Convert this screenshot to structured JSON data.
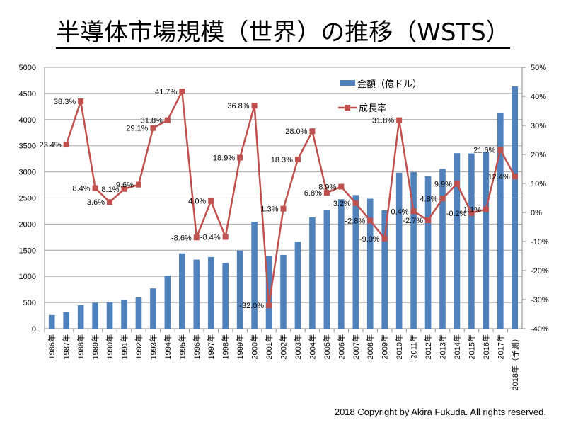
{
  "title": "半導体市場規模（世界）の推移（WSTS）",
  "copyright": "2018 Copyright by Akira Fukuda. All rights reserved.",
  "chart_data": {
    "type": "bar+line",
    "title": "半導体市場規模（世界）の推移（WSTS）",
    "categories": [
      "1986年",
      "1987年",
      "1988年",
      "1989年",
      "1990年",
      "1991年",
      "1992年",
      "1993年",
      "1994年",
      "1995年",
      "1996年",
      "1997年",
      "1998年",
      "1999年",
      "2000年",
      "2001年",
      "2002年",
      "2003年",
      "2004年",
      "2005年",
      "2006年",
      "2007年",
      "2008年",
      "2009年",
      "2010年",
      "2011年",
      "2012年",
      "2013年",
      "2014年",
      "2015年",
      "2016年",
      "2017年",
      "2018年（予測）"
    ],
    "series": [
      {
        "name": "金額（億ドル）",
        "type": "bar",
        "axis": "left",
        "color": "#4f81bd",
        "values": [
          260,
          320,
          450,
          495,
          505,
          546,
          596,
          770,
          1015,
          1440,
          1320,
          1370,
          1255,
          1494,
          2044,
          1390,
          1410,
          1664,
          2130,
          2275,
          2477,
          2556,
          2486,
          2263,
          2983,
          2995,
          2916,
          3056,
          3358,
          3352,
          3389,
          4122,
          4634
        ]
      },
      {
        "name": "成長率",
        "type": "line",
        "axis": "right",
        "color": "#c0504d",
        "values": [
          null,
          23.4,
          38.3,
          8.4,
          3.6,
          8.1,
          9.6,
          29.1,
          31.8,
          41.7,
          -8.6,
          4.0,
          -8.4,
          18.9,
          36.8,
          -32.0,
          1.3,
          18.3,
          28.0,
          6.8,
          8.9,
          3.2,
          -2.8,
          -9.0,
          31.8,
          0.4,
          -2.7,
          4.8,
          9.9,
          -0.2,
          1.1,
          21.6,
          12.4
        ],
        "labels": [
          "",
          "23.4%",
          "38.3%",
          "8.4%",
          "3.6%",
          "8.1%",
          "9.6%",
          "29.1%",
          "31.8%",
          "41.7%",
          "-8.6%",
          "4.0%",
          "-8.4%",
          "18.9%",
          "36.8%",
          "-32.0%",
          "1.3%",
          "18.3%",
          "28.0%",
          "6.8%",
          "8.9%",
          "3.2%",
          "-2.8%",
          "-9.0%",
          "31.8%",
          "0.4%",
          "-2.7%",
          "4.8%",
          "9.9%",
          "-0.2%",
          "1.1%",
          "21.6%",
          "12.4%"
        ]
      }
    ],
    "left_axis": {
      "range": [
        0,
        5000
      ],
      "ticks": [
        "0",
        "500",
        "1000",
        "1500",
        "2000",
        "2500",
        "3000",
        "3500",
        "4000",
        "4500",
        "5000"
      ]
    },
    "right_axis": {
      "range": [
        -40,
        50
      ],
      "ticks": [
        "-40%",
        "-30%",
        "-20%",
        "-10%",
        "0%",
        "10%",
        "20%",
        "30%",
        "40%",
        "50%"
      ]
    },
    "grid": true,
    "legend_position": "top-center"
  }
}
